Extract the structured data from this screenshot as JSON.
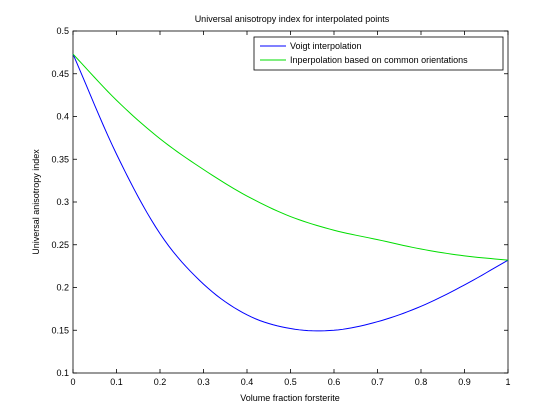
{
  "chart_data": {
    "type": "line",
    "title": "Universal anisotropy index for interpolated points",
    "xlabel": "Volume fraction forsterite",
    "ylabel": "Universal anisotropy index",
    "xlim": [
      0,
      1
    ],
    "ylim": [
      0.1,
      0.5
    ],
    "xticks": [
      "0",
      "0.1",
      "0.2",
      "0.3",
      "0.4",
      "0.5",
      "0.6",
      "0.7",
      "0.8",
      "0.9",
      "1"
    ],
    "yticks": [
      "0.1",
      "0.15",
      "0.2",
      "0.25",
      "0.3",
      "0.35",
      "0.4",
      "0.45",
      "0.5"
    ],
    "grid": false,
    "legend_position": "top-right",
    "x": [
      0,
      0.1,
      0.2,
      0.3,
      0.4,
      0.5,
      0.6,
      0.7,
      0.8,
      0.9,
      1.0
    ],
    "series": [
      {
        "name": "Voigt interpolation",
        "color": "#0000ff",
        "values": [
          0.473,
          0.356,
          0.263,
          0.204,
          0.168,
          0.152,
          0.15,
          0.16,
          0.178,
          0.203,
          0.232
        ]
      },
      {
        "name": "Inperpolation based on common orientations",
        "color": "#00dd00",
        "values": [
          0.473,
          0.419,
          0.374,
          0.338,
          0.307,
          0.283,
          0.267,
          0.256,
          0.245,
          0.237,
          0.232
        ]
      }
    ]
  }
}
